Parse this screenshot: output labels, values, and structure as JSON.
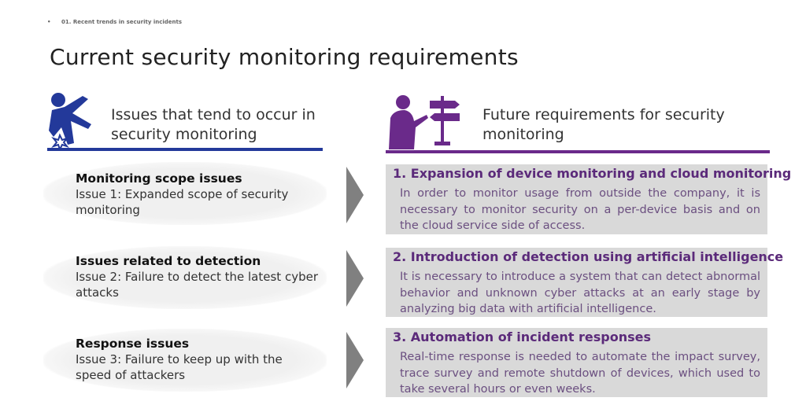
{
  "breadcrumb": {
    "bullet": "•",
    "text": "01. Recent trends in security incidents"
  },
  "title": "Current security monitoring requirements",
  "left": {
    "heading": "Issues that tend to occur in security monitoring",
    "icon": "falling-person-icon",
    "accent": "#23399a",
    "items": [
      {
        "title": "Monitoring scope issues",
        "desc": "Issue 1: Expanded scope of security monitoring"
      },
      {
        "title": "Issues related to detection",
        "desc": "Issue 2: Failure to detect the latest cyber attacks"
      },
      {
        "title": "Response issues",
        "desc": "Issue 3: Failure to keep up with the speed of attackers"
      }
    ]
  },
  "right": {
    "heading": "Future requirements for security monitoring",
    "icon": "person-signpost-icon",
    "accent": "#6a2a8a",
    "items": [
      {
        "title": "1. Expansion of device monitoring and cloud monitoring",
        "desc": "In order to monitor usage from outside the company, it is necessary to monitor security on a per-device basis and on the cloud service side of access."
      },
      {
        "title": "2. Introduction of detection using artificial intelligence",
        "desc": "It is necessary to introduce a system that can detect abnormal behavior and unknown cyber attacks at an early stage by analyzing big data with artificial intelligence."
      },
      {
        "title": "3. Automation of incident responses",
        "desc": "Real-time response is needed to automate the impact survey, trace survey and remote shutdown of devices, which used to take several hours or even weeks."
      }
    ]
  }
}
